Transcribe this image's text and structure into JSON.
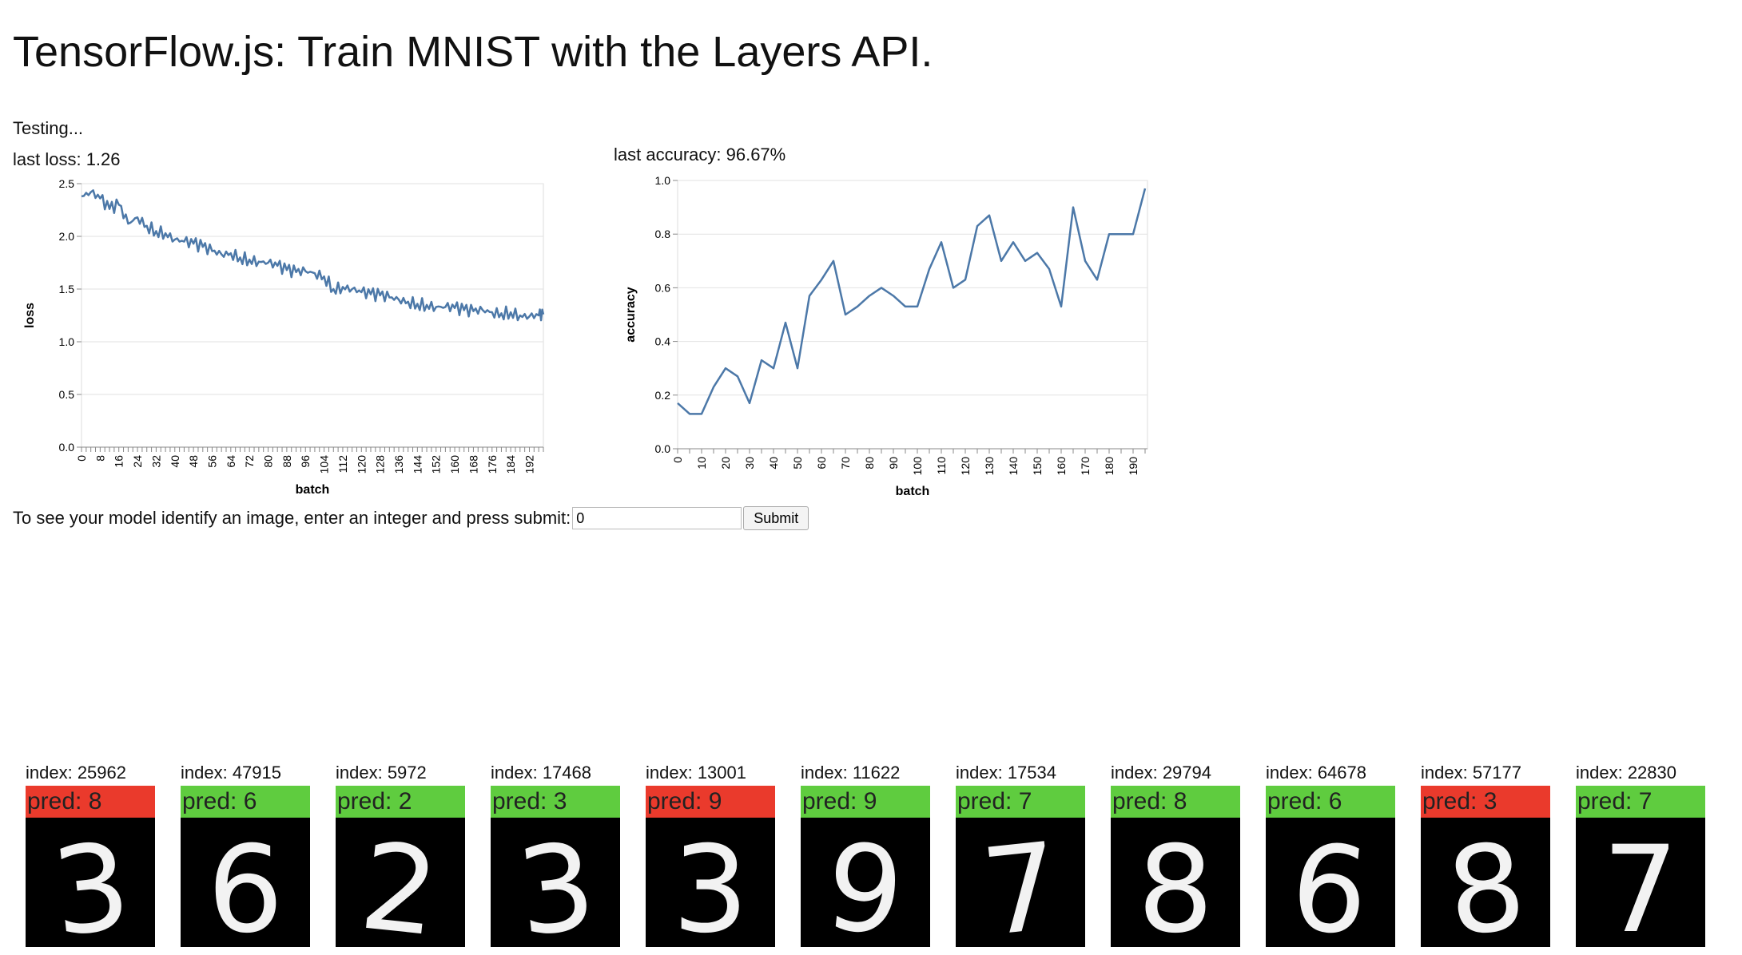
{
  "header": {
    "title": "TensorFlow.js: Train MNIST with the Layers API."
  },
  "status": {
    "text": "Testing..."
  },
  "loss_panel": {
    "label": "last loss: 1.26"
  },
  "accuracy_panel": {
    "label": "last accuracy: 96.67%"
  },
  "chart_data": [
    {
      "type": "line",
      "xlabel": "batch",
      "ylabel": "loss",
      "ylim": [
        0,
        2.5
      ],
      "xlim": [
        0,
        198
      ],
      "x_ticks": [
        0,
        8,
        16,
        24,
        32,
        40,
        48,
        56,
        64,
        72,
        80,
        88,
        96,
        104,
        112,
        120,
        128,
        136,
        144,
        152,
        160,
        168,
        176,
        184,
        192
      ],
      "y_ticks": [
        "0.0",
        "0.5",
        "1.0",
        "1.5",
        "2.0",
        "2.5"
      ],
      "color": "#4c78a8",
      "grid": true,
      "x": [
        0,
        4,
        8,
        12,
        16,
        20,
        24,
        28,
        32,
        36,
        40,
        44,
        48,
        52,
        56,
        60,
        64,
        68,
        72,
        76,
        80,
        84,
        88,
        92,
        96,
        100,
        104,
        108,
        112,
        116,
        120,
        124,
        128,
        132,
        136,
        140,
        144,
        148,
        152,
        156,
        160,
        164,
        168,
        172,
        176,
        180,
        184,
        188,
        192,
        196,
        198
      ],
      "y": [
        2.38,
        2.42,
        2.36,
        2.26,
        2.3,
        2.12,
        2.18,
        2.1,
        2.05,
        2.03,
        1.97,
        1.95,
        1.93,
        1.9,
        1.86,
        1.83,
        1.84,
        1.8,
        1.78,
        1.76,
        1.75,
        1.72,
        1.68,
        1.66,
        1.67,
        1.65,
        1.62,
        1.5,
        1.52,
        1.5,
        1.47,
        1.45,
        1.44,
        1.42,
        1.4,
        1.38,
        1.36,
        1.35,
        1.33,
        1.33,
        1.32,
        1.3,
        1.29,
        1.3,
        1.28,
        1.27,
        1.28,
        1.25,
        1.24,
        1.25,
        1.26
      ]
    },
    {
      "type": "line",
      "xlabel": "batch",
      "ylabel": "accuracy",
      "ylim": [
        0,
        1.0
      ],
      "xlim": [
        0,
        196
      ],
      "x_ticks": [
        0,
        10,
        20,
        30,
        40,
        50,
        60,
        70,
        80,
        90,
        100,
        110,
        120,
        130,
        140,
        150,
        160,
        170,
        180,
        190
      ],
      "y_ticks": [
        "0.0",
        "0.2",
        "0.4",
        "0.6",
        "0.8",
        "1.0"
      ],
      "color": "#4c78a8",
      "grid": true,
      "x": [
        0,
        5,
        10,
        15,
        20,
        25,
        30,
        35,
        40,
        45,
        50,
        55,
        60,
        65,
        70,
        75,
        80,
        85,
        90,
        95,
        100,
        105,
        110,
        115,
        120,
        125,
        130,
        135,
        140,
        145,
        150,
        155,
        160,
        165,
        170,
        175,
        180,
        185,
        190,
        195
      ],
      "y": [
        0.17,
        0.13,
        0.13,
        0.23,
        0.3,
        0.27,
        0.17,
        0.33,
        0.3,
        0.47,
        0.3,
        0.57,
        0.63,
        0.7,
        0.5,
        0.53,
        0.57,
        0.6,
        0.57,
        0.53,
        0.53,
        0.67,
        0.77,
        0.6,
        0.63,
        0.83,
        0.87,
        0.7,
        0.77,
        0.7,
        0.73,
        0.67,
        0.53,
        0.9,
        0.7,
        0.63,
        0.8,
        0.8,
        0.8,
        0.97
      ]
    }
  ],
  "form": {
    "prompt": "To see your model identify an image, enter an integer and press submit:",
    "input_value": "0",
    "submit_label": "Submit"
  },
  "samples": [
    {
      "index": "index: 25962",
      "pred": "pred: 8",
      "correct": false,
      "digit": "3"
    },
    {
      "index": "index: 47915",
      "pred": "pred: 6",
      "correct": true,
      "digit": "6"
    },
    {
      "index": "index: 5972",
      "pred": "pred: 2",
      "correct": true,
      "digit": "2"
    },
    {
      "index": "index: 17468",
      "pred": "pred: 3",
      "correct": true,
      "digit": "3"
    },
    {
      "index": "index: 13001",
      "pred": "pred: 9",
      "correct": false,
      "digit": "3"
    },
    {
      "index": "index: 11622",
      "pred": "pred: 9",
      "correct": true,
      "digit": "9"
    },
    {
      "index": "index: 17534",
      "pred": "pred: 7",
      "correct": true,
      "digit": "7"
    },
    {
      "index": "index: 29794",
      "pred": "pred: 8",
      "correct": true,
      "digit": "8"
    },
    {
      "index": "index: 64678",
      "pred": "pred: 6",
      "correct": true,
      "digit": "6"
    },
    {
      "index": "index: 57177",
      "pred": "pred: 3",
      "correct": false,
      "digit": "8"
    },
    {
      "index": "index: 22830",
      "pred": "pred: 7",
      "correct": true,
      "digit": "7"
    }
  ]
}
